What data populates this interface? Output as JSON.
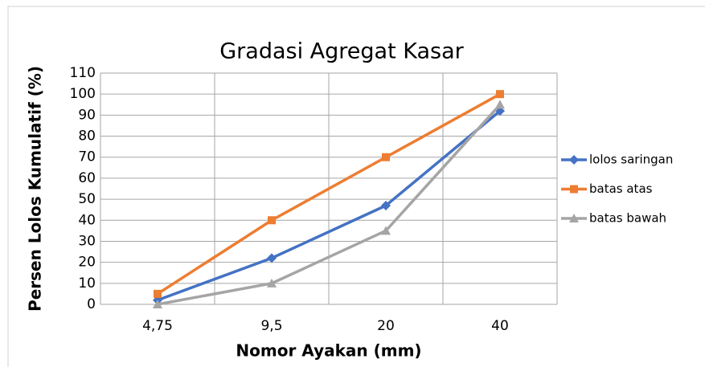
{
  "chart_data": {
    "type": "line",
    "title": "Gradasi Agregat Kasar",
    "x_label": "Nomor Ayakan (mm)",
    "y_label": "Persen  Lolos  Kumulatif (%)",
    "categories": [
      "4,75",
      "9,5",
      "20",
      "40"
    ],
    "series": [
      {
        "name": "lolos saringan",
        "color": "#4472c4",
        "marker": "diamond",
        "values": [
          2,
          22,
          47,
          92
        ]
      },
      {
        "name": "batas atas",
        "color": "#ed7d31",
        "marker": "square",
        "values": [
          5,
          40,
          70,
          100
        ]
      },
      {
        "name": "batas bawah",
        "color": "#a5a5a5",
        "marker": "triangle",
        "values": [
          0,
          10,
          35,
          95
        ]
      }
    ],
    "ylim": [
      0,
      110
    ],
    "yticks": [
      0,
      10,
      20,
      30,
      40,
      50,
      60,
      70,
      80,
      90,
      100,
      110
    ],
    "grid": true,
    "legend": "right"
  }
}
